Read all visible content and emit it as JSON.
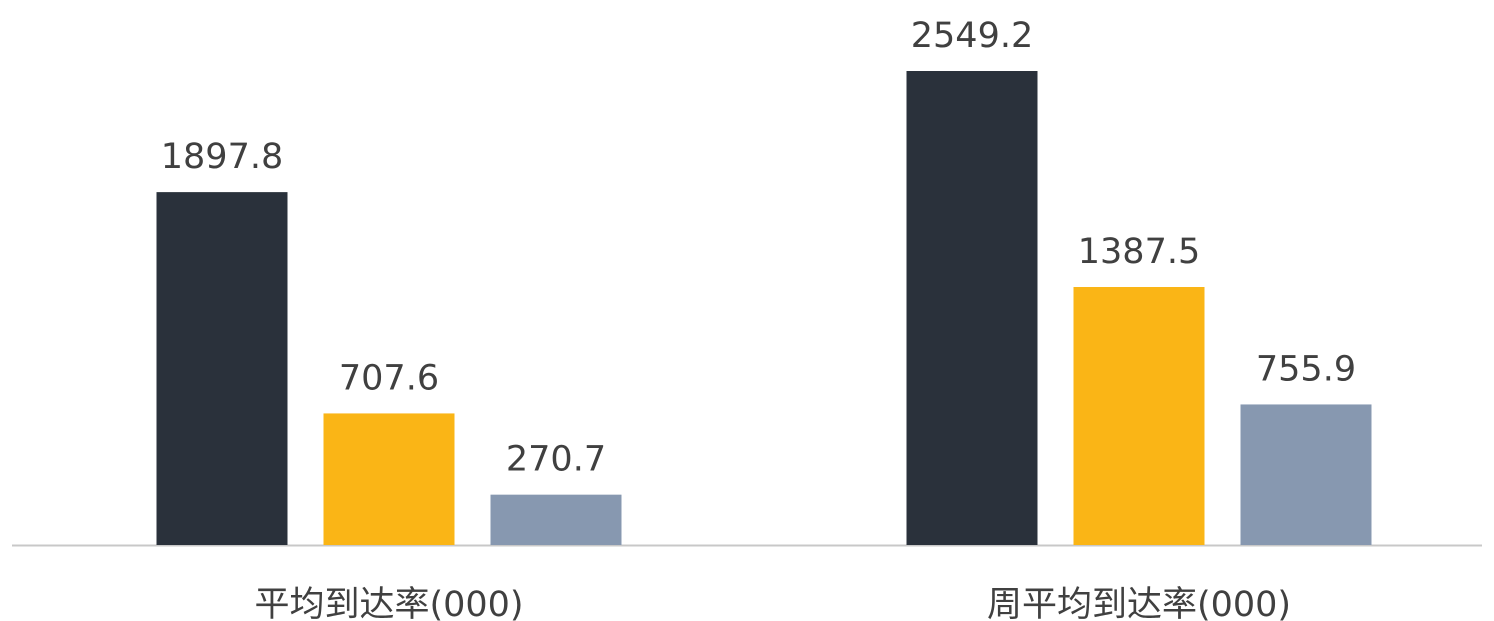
{
  "chart_data": {
    "type": "bar",
    "categories": [
      "平均到达率(000)",
      "周平均到达率(000)"
    ],
    "series": [
      {
        "color": "#2a313b",
        "values": [
          1897.8,
          2549.2
        ]
      },
      {
        "color": "#fab516",
        "values": [
          707.6,
          1387.5
        ]
      },
      {
        "color": "#8798b0",
        "values": [
          270.7,
          755.9
        ]
      }
    ]
  }
}
